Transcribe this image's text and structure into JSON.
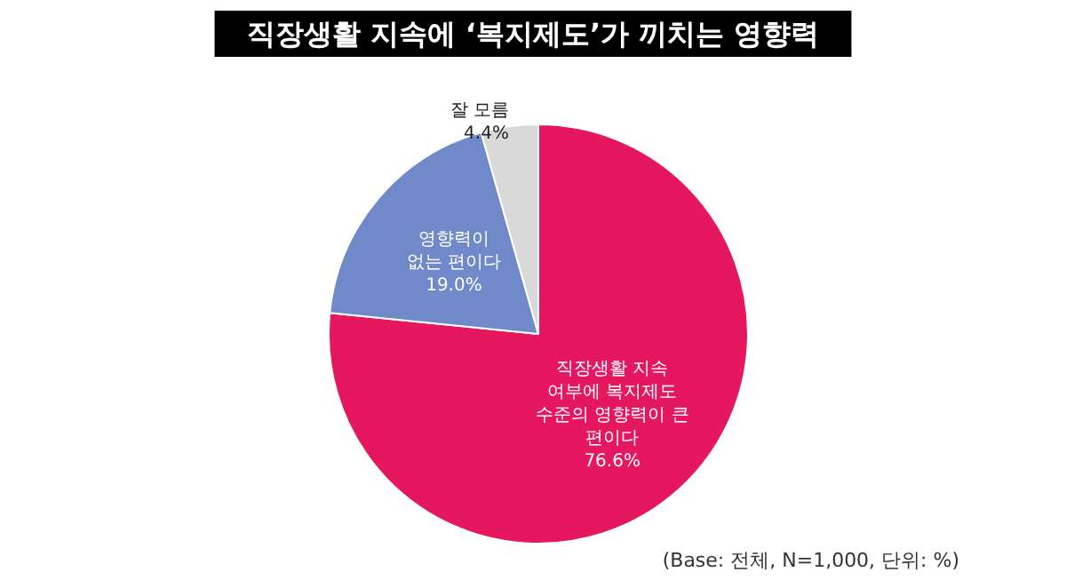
{
  "chart_data": {
    "type": "pie",
    "title": "직장생활 지속에 ‘복지제도’가 끼치는 영향력",
    "categories": [
      "직장생활 지속 여부에 복지제도 수준의 영향력이 큰 편이다",
      "영향력이 없는 편이다",
      "잘 모름"
    ],
    "values": [
      76.6,
      19.0,
      4.4
    ],
    "value_labels": [
      "76.6%",
      "19.0%",
      "4.4%"
    ],
    "colors": [
      "#e5175f",
      "#7089c9",
      "#d9d9d9"
    ],
    "annotations": [
      "(Base: 전체, N=1,000, 단위: %)"
    ],
    "legend": false
  }
}
